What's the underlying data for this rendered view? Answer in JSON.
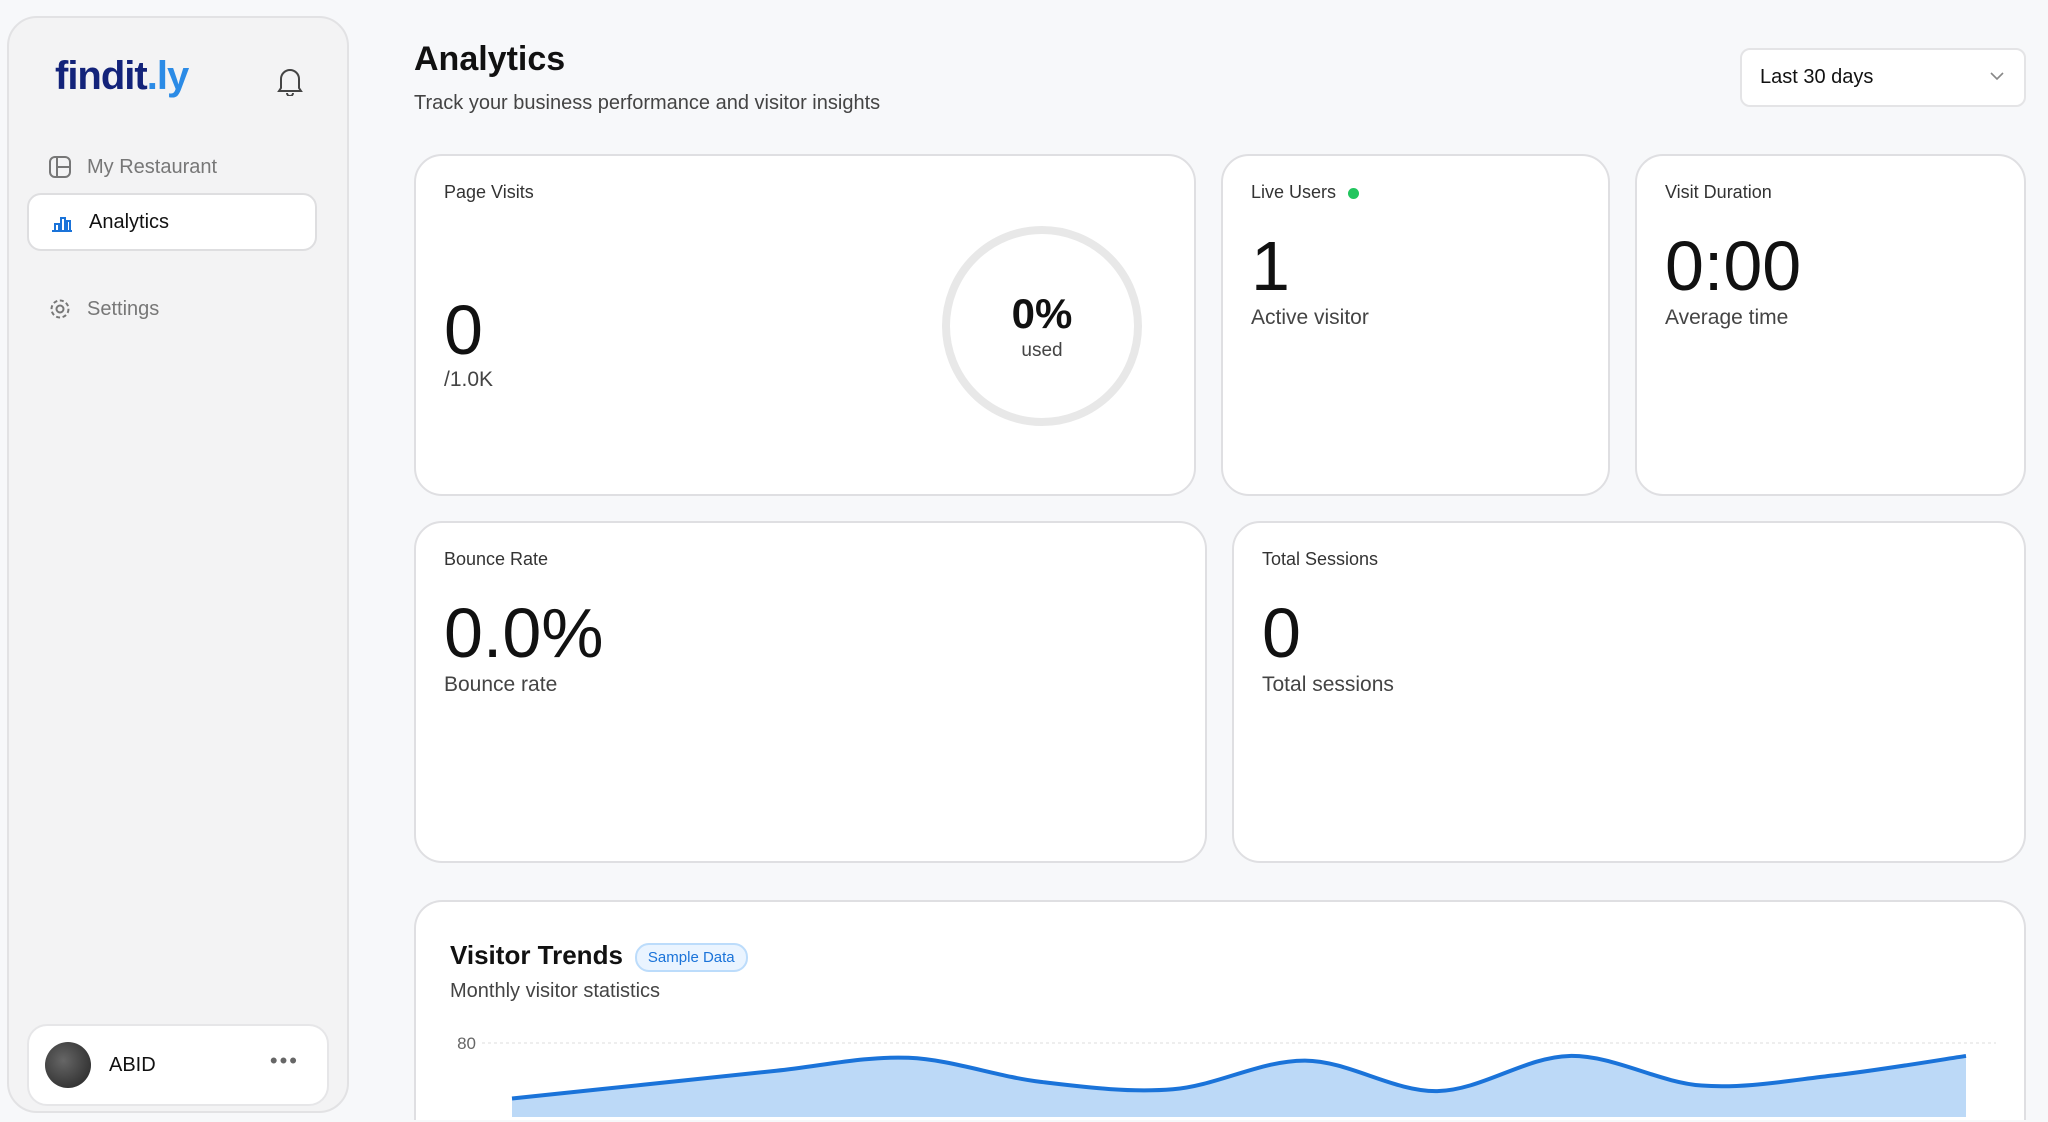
{
  "sidebar": {
    "logo": "findit.ly",
    "items": [
      {
        "label": "My Restaurant",
        "icon": "layout-icon"
      },
      {
        "label": "Analytics",
        "icon": "bar-chart-icon",
        "active": true
      },
      {
        "label": "Settings",
        "icon": "gear-icon"
      }
    ],
    "user": {
      "name": "ABID"
    }
  },
  "header": {
    "title": "Analytics",
    "subtitle": "Track your business performance and visitor insights",
    "range": "Last 30 days"
  },
  "cards": {
    "page_visits": {
      "label": "Page Visits",
      "value": "0",
      "limit": "/1.0K",
      "percent": "0%",
      "percent_label": "used"
    },
    "live_users": {
      "label": "Live Users",
      "value": "1",
      "sub": "Active visitor",
      "status_color": "#22c55e"
    },
    "visit_duration": {
      "label": "Visit Duration",
      "value": "0:00",
      "sub": "Average time"
    },
    "bounce_rate": {
      "label": "Bounce Rate",
      "value": "0.0%",
      "sub": "Bounce rate"
    },
    "total_sessions": {
      "label": "Total Sessions",
      "value": "0",
      "sub": "Total sessions"
    }
  },
  "trends": {
    "title": "Visitor Trends",
    "badge": "Sample Data",
    "subtitle": "Monthly visitor statistics"
  },
  "chart_data": {
    "type": "area",
    "y_ticks": [
      "80"
    ],
    "ylim": [
      0,
      80
    ],
    "grid": true,
    "color": "#1a73d9",
    "values": [
      20,
      35,
      50,
      64,
      38,
      30,
      61,
      28,
      66,
      34,
      45,
      66
    ]
  }
}
